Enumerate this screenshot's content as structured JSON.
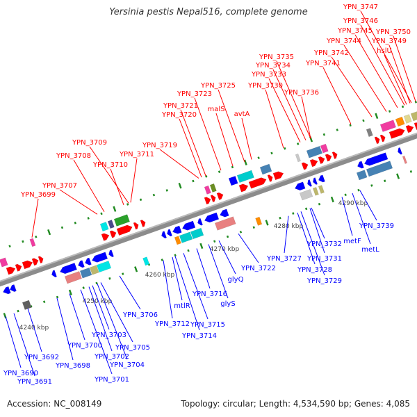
{
  "title": "Yersinia pestis Nepal516, complete genome",
  "footer": {
    "accession": "Accession: NC_008149",
    "summary": "Topology: circular; Length: 4,534,590 bp; Genes: 4,085"
  },
  "colors": {
    "forward_label": "#ff0000",
    "reverse_label": "#0000ff",
    "backbone": "#8c8c8c",
    "tick": "#228b22"
  },
  "kbp_labels": [
    "4240 kbp",
    "4250 kbp",
    "4260 kbp",
    "4270 kbp",
    "4280 kbp",
    "4290 kbp"
  ],
  "forward_genes": [
    "YPN_3747",
    "YPN_3746",
    "YPN_3745",
    "YPN_3750",
    "YPN_3744",
    "YPN_3749",
    "YPN_3742",
    "hslU",
    "YPN_3741",
    "YPN_3735",
    "YPN_3734",
    "YPN_3733",
    "YPN_3730",
    "YPN_3736",
    "YPN_3725",
    "YPN_3723",
    "YPN_3721",
    "malS",
    "avtA",
    "YPN_3720",
    "YPN_3719",
    "YPN_3709",
    "YPN_3708",
    "YPN_3711",
    "YPN_3710",
    "YPN_3707",
    "YPN_3699"
  ],
  "reverse_genes": [
    "YPN_3690",
    "YPN_3691",
    "YPN_3692",
    "YPN_3698",
    "YPN_3700",
    "YPN_3701",
    "YPN_3702",
    "YPN_3703",
    "YPN_3704",
    "YPN_3705",
    "YPN_3706",
    "YPN_3712",
    "mtlR",
    "YPN_3715",
    "YPN_3714",
    "YPN_3716",
    "glyS",
    "glyQ",
    "YPN_3722",
    "YPN_3727",
    "YPN_3728",
    "YPN_3729",
    "YPN_3731",
    "YPN_3732",
    "metF",
    "metL",
    "YPN_3739"
  ]
}
